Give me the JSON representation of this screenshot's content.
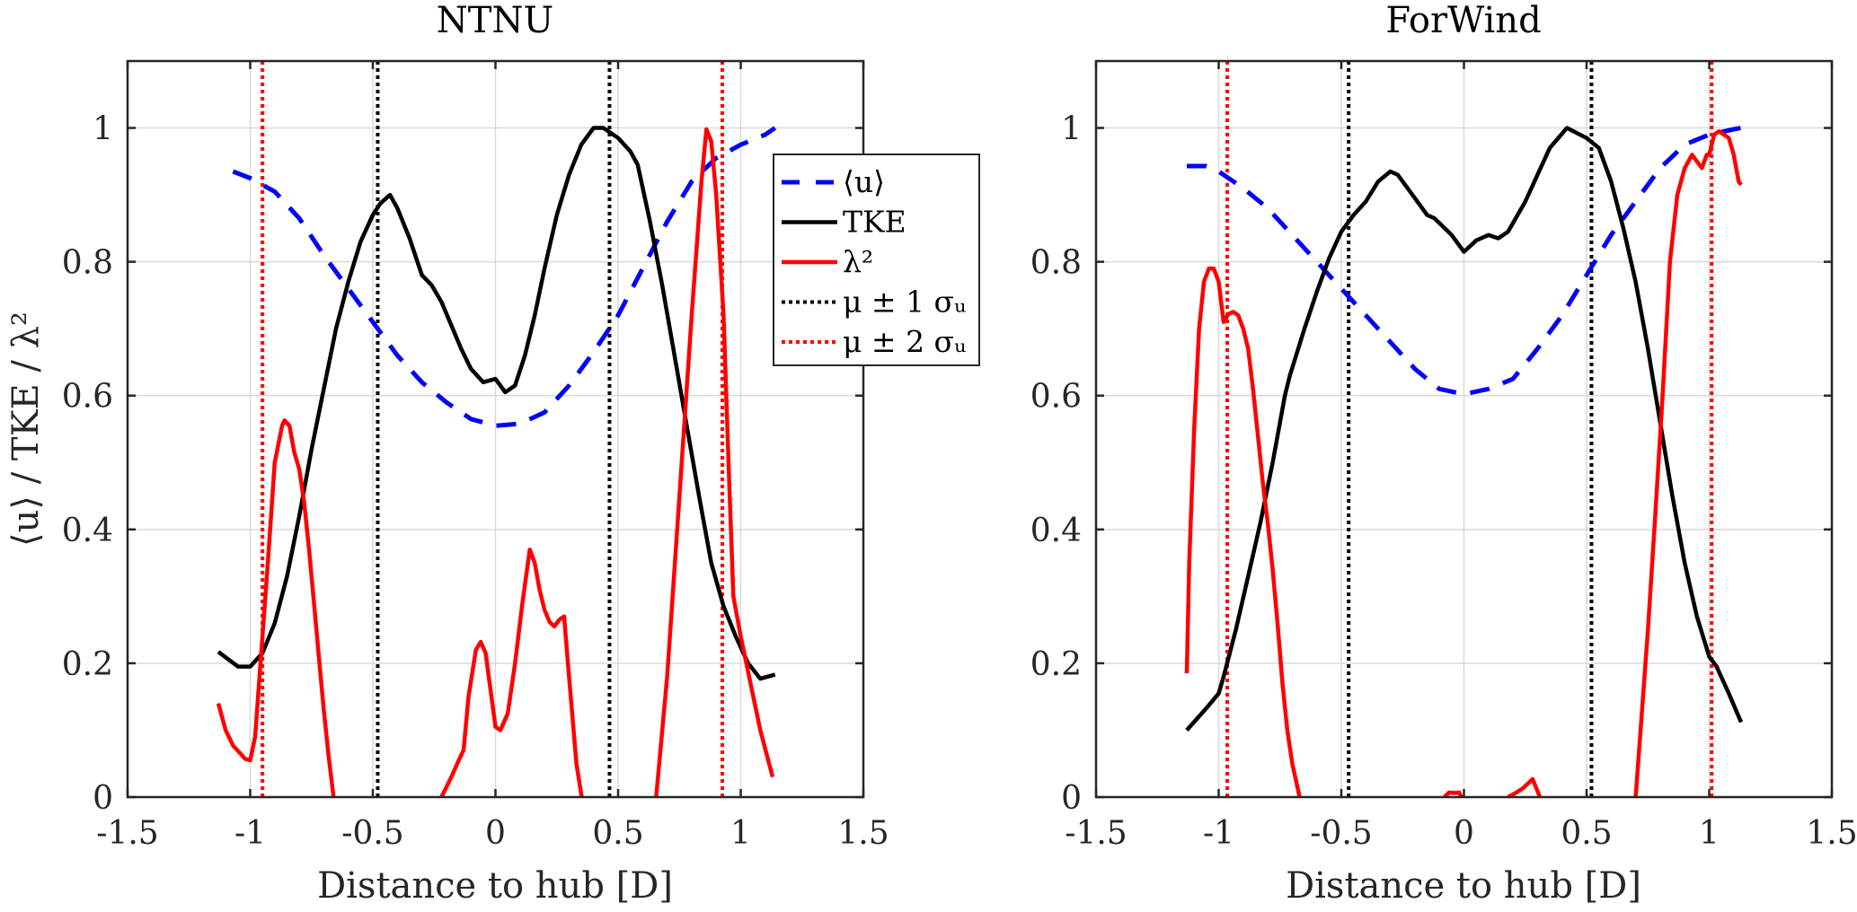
{
  "figure": {
    "ylabel": "⟨u⟩ / TKE / λ²",
    "colors": {
      "mean_u": "#0000ff",
      "tke": "#000000",
      "lambda2": "#ff0000",
      "sigma1": "#000000",
      "sigma2": "#ff0000"
    },
    "legend": [
      {
        "key": "mean_u",
        "label": "⟨u⟩",
        "style": "dashed"
      },
      {
        "key": "tke",
        "label": "TKE",
        "style": "solid"
      },
      {
        "key": "lambda2",
        "label": "λ²",
        "style": "solid"
      },
      {
        "key": "sigma1",
        "label": "μ ± 1 σᵤ",
        "style": "dotted"
      },
      {
        "key": "sigma2",
        "label": "μ ± 2 σᵤ",
        "style": "dotted"
      }
    ]
  },
  "chart_data": [
    {
      "type": "line",
      "title": "NTNU",
      "xlabel": "Distance to hub [D]",
      "ylabel": "⟨u⟩ / TKE / λ²",
      "xlim": [
        -1.5,
        1.5
      ],
      "ylim": [
        0,
        1.1
      ],
      "xticks": [
        -1.5,
        -1,
        -0.5,
        0,
        0.5,
        1,
        1.5
      ],
      "xtick_labels": [
        "-1.5",
        "-1",
        "-0.5",
        "0",
        "0.5",
        "1",
        "1.5"
      ],
      "yticks": [
        0,
        0.2,
        0.4,
        0.6,
        0.8,
        1
      ],
      "ytick_labels": [
        "0",
        "0.2",
        "0.4",
        "0.6",
        "0.8",
        "1"
      ],
      "grid": true,
      "legend_position": "top-right",
      "series": [
        {
          "name": "⟨u⟩",
          "key": "mean_u",
          "x": [
            -1.07,
            -1.0,
            -0.9,
            -0.8,
            -0.7,
            -0.6,
            -0.5,
            -0.4,
            -0.3,
            -0.2,
            -0.1,
            0.0,
            0.1,
            0.2,
            0.3,
            0.4,
            0.5,
            0.6,
            0.7,
            0.8,
            0.9,
            1.0,
            1.1,
            1.14
          ],
          "y": [
            0.935,
            0.925,
            0.905,
            0.865,
            0.81,
            0.76,
            0.71,
            0.66,
            0.62,
            0.59,
            0.565,
            0.555,
            0.558,
            0.575,
            0.615,
            0.665,
            0.72,
            0.79,
            0.86,
            0.92,
            0.955,
            0.975,
            0.99,
            1.0
          ]
        },
        {
          "name": "TKE",
          "key": "tke",
          "x": [
            -1.13,
            -1.05,
            -1.0,
            -0.95,
            -0.9,
            -0.85,
            -0.8,
            -0.75,
            -0.7,
            -0.65,
            -0.6,
            -0.55,
            -0.5,
            -0.47,
            -0.43,
            -0.4,
            -0.35,
            -0.3,
            -0.26,
            -0.22,
            -0.18,
            -0.14,
            -0.1,
            -0.05,
            0.0,
            0.04,
            0.08,
            0.12,
            0.16,
            0.2,
            0.25,
            0.3,
            0.35,
            0.4,
            0.44,
            0.5,
            0.55,
            0.58,
            0.63,
            0.68,
            0.73,
            0.78,
            0.83,
            0.88,
            0.93,
            0.98,
            1.03,
            1.08,
            1.14
          ],
          "y": [
            0.217,
            0.195,
            0.195,
            0.215,
            0.26,
            0.33,
            0.42,
            0.52,
            0.61,
            0.7,
            0.77,
            0.83,
            0.87,
            0.887,
            0.9,
            0.88,
            0.835,
            0.78,
            0.765,
            0.74,
            0.705,
            0.67,
            0.64,
            0.62,
            0.625,
            0.605,
            0.615,
            0.66,
            0.72,
            0.79,
            0.87,
            0.93,
            0.975,
            1.0,
            1.0,
            0.985,
            0.965,
            0.945,
            0.86,
            0.765,
            0.66,
            0.555,
            0.45,
            0.35,
            0.285,
            0.24,
            0.2,
            0.177,
            0.183
          ]
        },
        {
          "name": "λ²",
          "key": "lambda2",
          "segments": [
            {
              "x": [
                -1.13,
                -1.1,
                -1.07,
                -1.04,
                -1.02,
                -1.0,
                -0.98,
                -0.96,
                -0.93,
                -0.9,
                -0.87,
                -0.86,
                -0.84,
                -0.82,
                -0.8,
                -0.78,
                -0.76,
                -0.74,
                -0.72,
                -0.7,
                -0.68,
                -0.66,
                -0.64
              ],
              "y": [
                0.14,
                0.1,
                0.077,
                0.065,
                0.057,
                0.055,
                0.09,
                0.19,
                0.34,
                0.5,
                0.555,
                0.563,
                0.555,
                0.515,
                0.49,
                0.44,
                0.37,
                0.29,
                0.21,
                0.13,
                0.06,
                0.0,
                -0.02
              ]
            },
            {
              "x": [
                -0.22,
                -0.18,
                -0.15,
                -0.13,
                -0.11,
                -0.08,
                -0.06,
                -0.04,
                -0.02,
                0.0,
                0.02,
                0.05,
                0.08,
                0.11,
                0.14,
                0.16,
                0.18,
                0.2,
                0.22,
                0.24,
                0.26,
                0.28,
                0.3,
                0.33,
                0.36
              ],
              "y": [
                0.0,
                0.03,
                0.055,
                0.07,
                0.15,
                0.22,
                0.232,
                0.215,
                0.16,
                0.105,
                0.1,
                0.125,
                0.2,
                0.29,
                0.37,
                0.35,
                0.31,
                0.28,
                0.262,
                0.255,
                0.265,
                0.27,
                0.18,
                0.05,
                -0.02
              ]
            },
            {
              "x": [
                0.65,
                0.7,
                0.75,
                0.8,
                0.84,
                0.86,
                0.88,
                0.9,
                0.93,
                0.95,
                0.97,
                0.99,
                1.0,
                1.04,
                1.08,
                1.13
              ],
              "y": [
                -0.02,
                0.18,
                0.45,
                0.72,
                0.92,
                0.998,
                0.98,
                0.9,
                0.72,
                0.5,
                0.3,
                0.26,
                0.24,
                0.17,
                0.1,
                0.03
              ]
            }
          ]
        }
      ],
      "reference_lines": [
        {
          "key": "sigma2",
          "x": -0.95
        },
        {
          "key": "sigma1",
          "x": -0.48
        },
        {
          "key": "sigma1",
          "x": 0.465
        },
        {
          "key": "sigma2",
          "x": 0.925
        }
      ]
    },
    {
      "type": "line",
      "title": "ForWind",
      "xlabel": "Distance to hub [D]",
      "ylabel": "",
      "xlim": [
        -1.5,
        1.5
      ],
      "ylim": [
        0,
        1.1
      ],
      "xticks": [
        -1.5,
        -1,
        -0.5,
        0,
        0.5,
        1,
        1.5
      ],
      "xtick_labels": [
        "-1.5",
        "-1",
        "-0.5",
        "0",
        "0.5",
        "1",
        "1.5"
      ],
      "yticks": [
        0,
        0.2,
        0.4,
        0.6,
        0.8,
        1
      ],
      "ytick_labels": [
        "0",
        "0.2",
        "0.4",
        "0.6",
        "0.8",
        "1"
      ],
      "grid": true,
      "series": [
        {
          "name": "⟨u⟩",
          "key": "mean_u",
          "x": [
            -1.13,
            -1.05,
            -1.0,
            -0.9,
            -0.8,
            -0.7,
            -0.6,
            -0.5,
            -0.4,
            -0.3,
            -0.2,
            -0.1,
            0.0,
            0.1,
            0.2,
            0.3,
            0.4,
            0.5,
            0.6,
            0.7,
            0.8,
            0.9,
            1.0,
            1.1,
            1.13
          ],
          "y": [
            0.943,
            0.943,
            0.935,
            0.91,
            0.88,
            0.84,
            0.8,
            0.76,
            0.72,
            0.68,
            0.64,
            0.61,
            0.602,
            0.61,
            0.625,
            0.67,
            0.72,
            0.78,
            0.84,
            0.89,
            0.94,
            0.975,
            0.99,
            0.998,
            1.0
          ]
        },
        {
          "name": "TKE",
          "key": "tke",
          "x": [
            -1.13,
            -1.05,
            -1.0,
            -0.98,
            -0.93,
            -0.88,
            -0.83,
            -0.78,
            -0.73,
            -0.71,
            -0.65,
            -0.6,
            -0.55,
            -0.5,
            -0.45,
            -0.4,
            -0.35,
            -0.3,
            -0.27,
            -0.2,
            -0.15,
            -0.12,
            -0.05,
            0.0,
            0.05,
            0.1,
            0.14,
            0.18,
            0.25,
            0.3,
            0.35,
            0.42,
            0.5,
            0.55,
            0.6,
            0.65,
            0.7,
            0.75,
            0.8,
            0.85,
            0.9,
            0.95,
            1.0,
            1.03,
            1.08,
            1.13
          ],
          "y": [
            0.1,
            0.133,
            0.155,
            0.18,
            0.25,
            0.33,
            0.41,
            0.5,
            0.6,
            0.63,
            0.7,
            0.755,
            0.805,
            0.845,
            0.87,
            0.89,
            0.92,
            0.935,
            0.93,
            0.895,
            0.87,
            0.865,
            0.84,
            0.815,
            0.832,
            0.84,
            0.835,
            0.845,
            0.89,
            0.93,
            0.97,
            1.0,
            0.985,
            0.97,
            0.92,
            0.85,
            0.77,
            0.67,
            0.56,
            0.45,
            0.35,
            0.27,
            0.21,
            0.195,
            0.155,
            0.112
          ]
        },
        {
          "name": "λ²",
          "key": "lambda2",
          "segments": [
            {
              "x": [
                -1.13,
                -1.12,
                -1.1,
                -1.08,
                -1.06,
                -1.04,
                -1.02,
                -1.0,
                -0.98,
                -0.96,
                -0.94,
                -0.92,
                -0.9,
                -0.88,
                -0.86,
                -0.84,
                -0.82,
                -0.8,
                -0.78,
                -0.76,
                -0.74,
                -0.72,
                -0.7,
                -0.67
              ],
              "y": [
                0.185,
                0.35,
                0.55,
                0.7,
                0.77,
                0.79,
                0.79,
                0.77,
                0.71,
                0.722,
                0.725,
                0.72,
                0.7,
                0.67,
                0.61,
                0.54,
                0.47,
                0.41,
                0.34,
                0.26,
                0.17,
                0.1,
                0.05,
                0.0
              ]
            },
            {
              "x": [
                -0.08,
                -0.06,
                -0.04,
                -0.02,
                -0.01
              ],
              "y": [
                0.0,
                0.007,
                0.006,
                0.007,
                0.0
              ]
            },
            {
              "x": [
                0.18,
                0.21,
                0.24,
                0.26,
                0.28,
                0.31
              ],
              "y": [
                0.0,
                0.006,
                0.013,
                0.02,
                0.027,
                0.0
              ]
            },
            {
              "x": [
                0.7,
                0.72,
                0.75,
                0.78,
                0.81,
                0.84,
                0.87,
                0.9,
                0.93,
                0.95,
                0.97,
                0.99,
                1.0,
                1.02,
                1.04,
                1.06,
                1.08,
                1.1,
                1.12,
                1.13
              ],
              "y": [
                0.0,
                0.1,
                0.25,
                0.42,
                0.6,
                0.8,
                0.9,
                0.94,
                0.96,
                0.95,
                0.94,
                0.96,
                0.96,
                0.99,
                0.995,
                0.99,
                0.985,
                0.96,
                0.92,
                0.915
              ]
            }
          ]
        }
      ],
      "reference_lines": [
        {
          "key": "sigma2",
          "x": -0.965
        },
        {
          "key": "sigma1",
          "x": -0.47
        },
        {
          "key": "sigma1",
          "x": 0.52
        },
        {
          "key": "sigma2",
          "x": 1.01
        }
      ]
    }
  ]
}
